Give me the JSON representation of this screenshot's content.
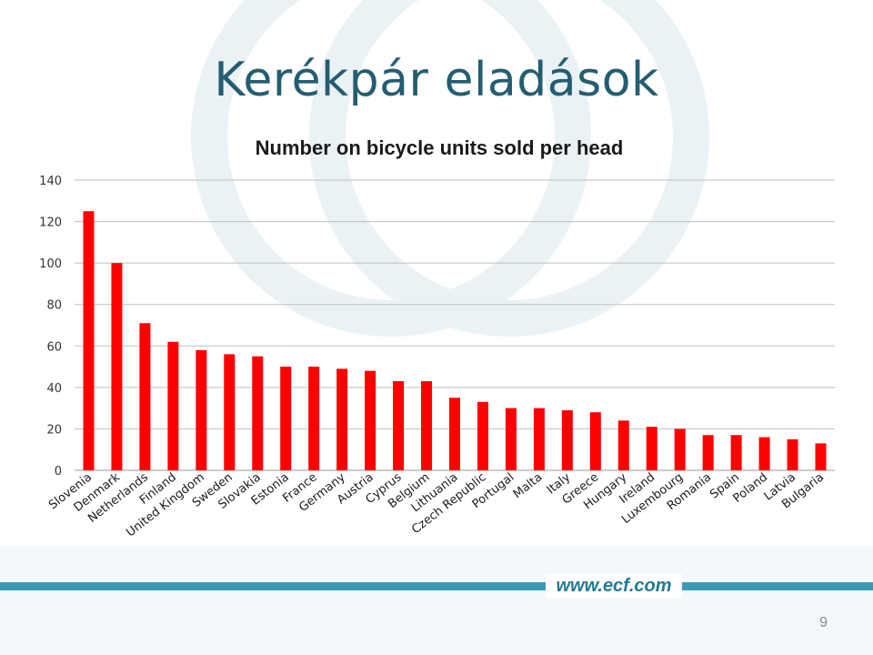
{
  "slide": {
    "title": "Kerékpár eladások",
    "page_number": "9"
  },
  "footer": {
    "url": "www.ecf.com"
  },
  "colors": {
    "title": "#245d72",
    "bar": "#ff0000",
    "gridline": "#bfbfbf",
    "footer_band": "#3a9bb4",
    "decor_circles": "#eaf2f5"
  },
  "chart_data": {
    "type": "bar",
    "title": "Number on bicycle units sold per head",
    "xlabel": "",
    "ylabel": "",
    "ylim": [
      0,
      140
    ],
    "yticks": [
      0,
      20,
      40,
      60,
      80,
      100,
      120,
      140
    ],
    "grid": true,
    "legend": "none",
    "categories": [
      "Slovenia",
      "Denmark",
      "Netherlands",
      "Finland",
      "United Kingdom",
      "Sweden",
      "Slovakia",
      "Estonia",
      "France",
      "Germany",
      "Austria",
      "Cyprus",
      "Belgium",
      "Lithuania",
      "Czech Republic",
      "Portugal",
      "Malta",
      "Italy",
      "Greece",
      "Hungary",
      "Ireland",
      "Luxembourg",
      "Romania",
      "Spain",
      "Poland",
      "Latvia",
      "Bulgaria"
    ],
    "values": [
      125,
      100,
      71,
      62,
      58,
      56,
      55,
      50,
      50,
      49,
      48,
      43,
      43,
      35,
      33,
      30,
      30,
      29,
      28,
      24,
      21,
      20,
      17,
      17,
      16,
      15,
      13
    ]
  }
}
